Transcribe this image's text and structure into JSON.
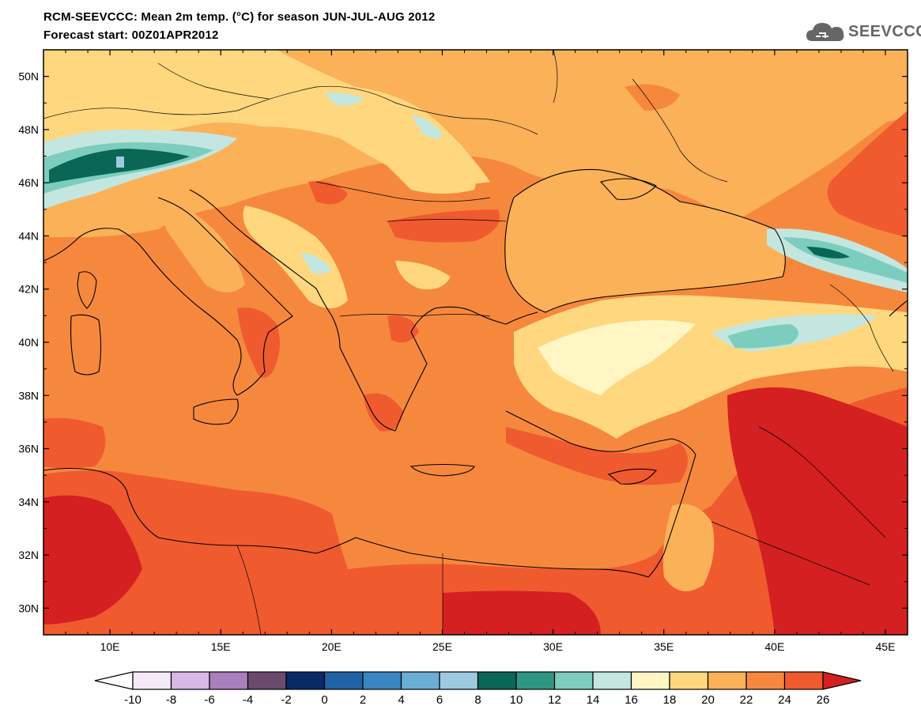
{
  "title": {
    "line1": "RCM-SEEVCCC: Mean 2m temp. (°C) for season JUN-JUL-AUG 2012",
    "line2": "Forecast start: 00Z01APR2012"
  },
  "logo": {
    "text": "SEEVCCC",
    "icon": "cloud-icon",
    "color": "#666666"
  },
  "map": {
    "lon_range": [
      7,
      46
    ],
    "lat_range": [
      29,
      51
    ],
    "lat_labels": [
      "30N",
      "32N",
      "34N",
      "36N",
      "38N",
      "40N",
      "42N",
      "44N",
      "46N",
      "48N",
      "50N"
    ],
    "lat_values": [
      30,
      32,
      34,
      36,
      38,
      40,
      42,
      44,
      46,
      48,
      50
    ],
    "lon_labels": [
      "10E",
      "15E",
      "20E",
      "25E",
      "30E",
      "35E",
      "40E",
      "45E"
    ],
    "lon_values": [
      10,
      15,
      20,
      25,
      30,
      35,
      40,
      45
    ]
  },
  "colorbar": {
    "labels": [
      "-10",
      "-8",
      "-6",
      "-4",
      "-2",
      "0",
      "2",
      "4",
      "6",
      "8",
      "10",
      "12",
      "14",
      "16",
      "18",
      "20",
      "22",
      "24",
      "26"
    ],
    "colors": [
      "#f5eaf8",
      "#d8b8e6",
      "#a97fbd",
      "#6b4a6f",
      "#0a2a66",
      "#1f63a6",
      "#3a86c2",
      "#6aaed6",
      "#9ecae1",
      "#0a6655",
      "#2f9684",
      "#7ccdbd",
      "#c3e7e0",
      "#fff6c4",
      "#ffd77f",
      "#fbb158",
      "#f6883d",
      "#f05a2f"
    ],
    "under_color": "#ffffff",
    "over_color": "#d42020"
  }
}
